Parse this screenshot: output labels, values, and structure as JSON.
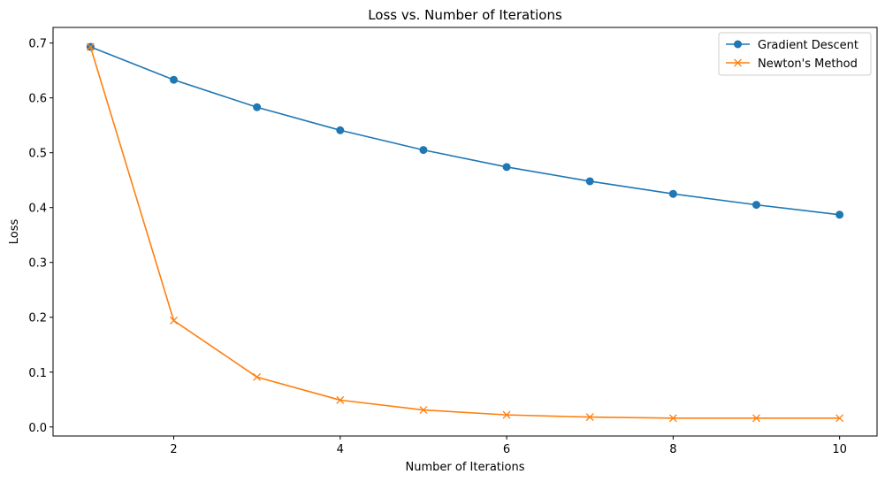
{
  "chart_data": {
    "type": "line",
    "title": "Loss vs. Number of Iterations",
    "xlabel": "Number of Iterations",
    "ylabel": "Loss",
    "x": [
      1,
      2,
      3,
      4,
      5,
      6,
      7,
      8,
      9,
      10
    ],
    "xlim": [
      0.55,
      10.45
    ],
    "ylim": [
      -0.0165,
      0.7285
    ],
    "xticks": [
      2,
      4,
      6,
      8,
      10
    ],
    "yticks": [
      0.0,
      0.1,
      0.2,
      0.3,
      0.4,
      0.5,
      0.6,
      0.7
    ],
    "xtick_labels": [
      "2",
      "4",
      "6",
      "8",
      "10"
    ],
    "ytick_labels": [
      "0.0",
      "0.1",
      "0.2",
      "0.3",
      "0.4",
      "0.5",
      "0.6",
      "0.7"
    ],
    "grid": false,
    "legend_position": "top-right",
    "series": [
      {
        "name": "Gradient Descent",
        "color": "#1f77b4",
        "marker": "circle",
        "values": [
          0.693,
          0.633,
          0.583,
          0.541,
          0.505,
          0.474,
          0.448,
          0.425,
          0.405,
          0.387
        ]
      },
      {
        "name": "Newton's Method",
        "color": "#ff7f0e",
        "marker": "x",
        "values": [
          0.693,
          0.194,
          0.091,
          0.049,
          0.031,
          0.022,
          0.018,
          0.016,
          0.016,
          0.016
        ]
      }
    ]
  }
}
